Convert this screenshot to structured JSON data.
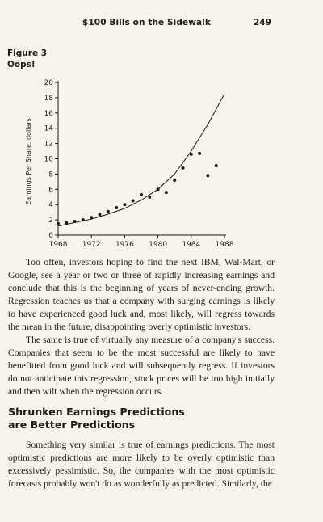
{
  "header": {
    "running_head": "$100 Bills on the Sidewalk",
    "page_number": "249"
  },
  "figure": {
    "label_line1": "Figure 3",
    "label_line2": "Oops!"
  },
  "chart_data": {
    "type": "scatter",
    "title": "",
    "xlabel": "",
    "ylabel": "Earnings Per Share, dollars",
    "xlim": [
      1968,
      1988
    ],
    "ylim": [
      0,
      20
    ],
    "x_ticks": [
      "1968",
      "1972",
      "1976",
      "1980",
      "1984",
      "1988"
    ],
    "y_ticks": [
      "0",
      "2",
      "4",
      "6",
      "8",
      "10",
      "12",
      "14",
      "16",
      "18",
      "20"
    ],
    "grid": false,
    "series": [
      {
        "type": "scatter",
        "x": [
          1968,
          1969,
          1970,
          1971,
          1972,
          1973,
          1974,
          1975,
          1976,
          1977,
          1978,
          1979,
          1980,
          1981,
          1982,
          1983,
          1984,
          1985,
          1986,
          1987
        ],
        "y": [
          1.5,
          1.6,
          1.8,
          2.0,
          2.3,
          2.7,
          3.1,
          3.6,
          4.0,
          4.5,
          5.3,
          5.0,
          6.0,
          5.6,
          7.2,
          8.8,
          10.6,
          10.7,
          7.8,
          9.1
        ]
      },
      {
        "type": "line",
        "x": [
          1968,
          1970,
          1972,
          1974,
          1976,
          1978,
          1980,
          1982,
          1984,
          1986,
          1988
        ],
        "y": [
          1.2,
          1.65,
          2.1,
          2.75,
          3.5,
          4.6,
          6.0,
          8.0,
          11.0,
          14.5,
          18.5
        ]
      }
    ]
  },
  "body": {
    "paragraph1": "Too often, investors hoping to find the next IBM, Wal-Mart, or Google, see a year or two or three of rapidly increasing earnings and conclude that this is the beginning of years of never-ending growth. Regression teaches us that a company with surging earnings is likely to have experienced good luck and, most likely, will regress towards the mean in the future, disappointing overly optimistic investors.",
    "paragraph2": "The same is true of virtually any measure of a company's success. Companies that seem to be the most successful are likely to have benefitted from good luck and will subsequently regress. If investors do not anticipate this regression, stock prices will be too high initially and then wilt when the regression occurs.",
    "section_heading_line1": "Shrunken Earnings Predictions",
    "section_heading_line2": "are Better Predictions",
    "paragraph3": "Something very similar is true of earnings predictions. The most optimistic predictions are more likely to be overly optimistic than excessively pessimistic. So, the companies with the most optimistic forecasts probably won't do as wonderfully as predicted. Similarly, the"
  }
}
